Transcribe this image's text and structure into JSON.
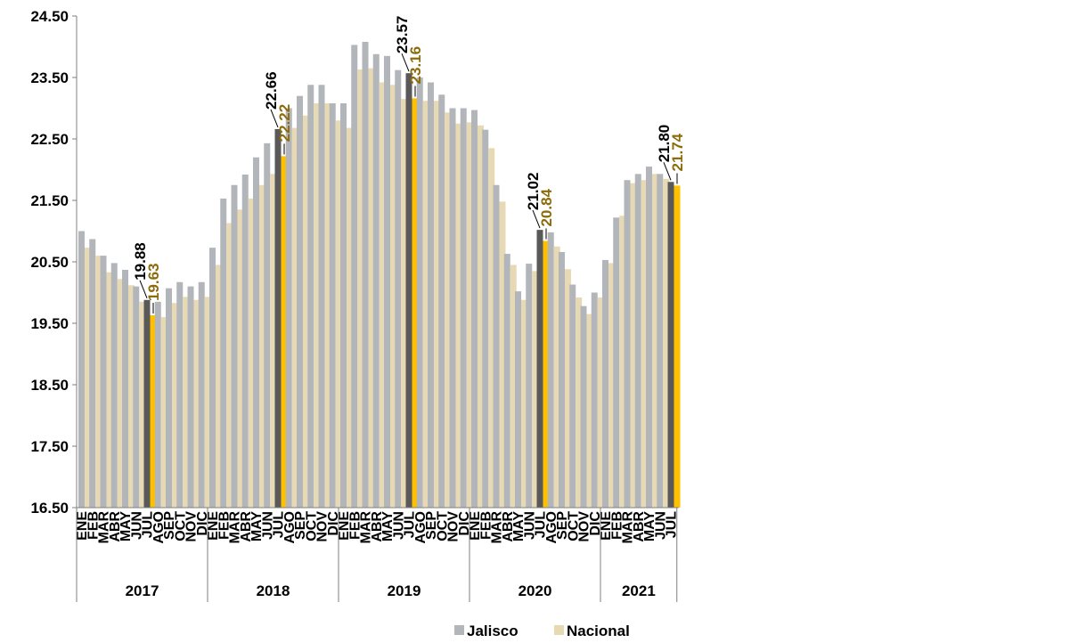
{
  "chart_data": {
    "type": "bar",
    "ylim": [
      16.5,
      24.5
    ],
    "yticks": [
      "16.50",
      "17.50",
      "18.50",
      "19.50",
      "20.50",
      "21.50",
      "22.50",
      "23.50",
      "24.50"
    ],
    "grid": false,
    "legend_position": "bottom",
    "years": [
      "2017",
      "2018",
      "2019",
      "2020",
      "2021"
    ],
    "months": [
      "ENE",
      "FEB",
      "MAR",
      "ABR",
      "MAY",
      "JUN",
      "JUL",
      "AGO",
      "SEP",
      "OCT",
      "NOV",
      "DIC"
    ],
    "categories": [
      "2017 ENE",
      "2017 FEB",
      "2017 MAR",
      "2017 ABR",
      "2017 MAY",
      "2017 JUN",
      "2017 JUL",
      "2017 AGO",
      "2017 SEP",
      "2017 OCT",
      "2017 NOV",
      "2017 DIC",
      "2018 ENE",
      "2018 FEB",
      "2018 MAR",
      "2018 ABR",
      "2018 MAY",
      "2018 JUN",
      "2018 JUL",
      "2018 AGO",
      "2018 SEP",
      "2018 OCT",
      "2018 NOV",
      "2018 DIC",
      "2019 ENE",
      "2019 FEB",
      "2019 MAR",
      "2019 ABR",
      "2019 MAY",
      "2019 JUN",
      "2019 JUL",
      "2019 AGO",
      "2019 SEP",
      "2019 OCT",
      "2019 NOV",
      "2019 DIC",
      "2020 ENE",
      "2020 FEB",
      "2020 MAR",
      "2020 ABR",
      "2020 MAY",
      "2020 JUN",
      "2020 JUL",
      "2020 AGO",
      "2020 SEP",
      "2020 OCT",
      "2020 NOV",
      "2020 DIC",
      "2021 ENE",
      "2021 FEB",
      "2021 MAR",
      "2021 ABR",
      "2021 MAY",
      "2021 JUN",
      "2021 JUL"
    ],
    "series": [
      {
        "name": "Jalisco",
        "color": "#b2b6ba",
        "highlight_color": "#595959",
        "label_color": "#000000",
        "values": [
          21.0,
          20.87,
          20.6,
          20.48,
          20.37,
          20.1,
          19.88,
          19.85,
          20.07,
          20.17,
          20.1,
          20.17,
          20.73,
          21.53,
          21.75,
          21.92,
          22.2,
          22.43,
          22.66,
          23.0,
          23.2,
          23.38,
          23.38,
          23.08,
          23.08,
          24.03,
          24.08,
          23.88,
          23.85,
          23.62,
          23.57,
          23.5,
          23.42,
          23.22,
          23.0,
          23.0,
          22.97,
          22.65,
          21.75,
          20.63,
          20.02,
          20.47,
          21.02,
          20.98,
          20.66,
          20.13,
          19.78,
          20.0,
          20.53,
          21.22,
          21.83,
          21.93,
          22.05,
          21.93,
          21.8
        ]
      },
      {
        "name": "Nacional",
        "color": "#e8d9b5",
        "highlight_color": "#ffc000",
        "label_color": "#8c6b0a",
        "values": [
          20.73,
          20.6,
          20.33,
          20.22,
          20.12,
          19.85,
          19.63,
          19.6,
          19.83,
          19.93,
          19.88,
          19.93,
          20.45,
          21.13,
          21.35,
          21.53,
          21.75,
          21.93,
          22.22,
          22.68,
          22.88,
          23.08,
          23.08,
          22.8,
          22.68,
          23.63,
          23.65,
          23.42,
          23.38,
          23.15,
          23.16,
          23.12,
          23.12,
          22.93,
          22.75,
          22.77,
          22.72,
          22.35,
          21.48,
          20.45,
          19.88,
          20.35,
          20.84,
          20.75,
          20.38,
          19.92,
          19.65,
          19.92,
          20.48,
          21.25,
          21.78,
          21.83,
          21.93,
          21.85,
          21.74
        ]
      }
    ],
    "highlight_index": [
      6,
      18,
      30,
      42,
      54
    ],
    "data_labels": [
      {
        "index": 6,
        "Jalisco": "19.88",
        "Nacional": "19.63"
      },
      {
        "index": 18,
        "Jalisco": "22.66",
        "Nacional": "22.22"
      },
      {
        "index": 30,
        "Jalisco": "23.57",
        "Nacional": "23.16"
      },
      {
        "index": 42,
        "Jalisco": "21.02",
        "Nacional": "20.84"
      },
      {
        "index": 54,
        "Jalisco": "21.80",
        "Nacional": "21.74"
      }
    ]
  }
}
